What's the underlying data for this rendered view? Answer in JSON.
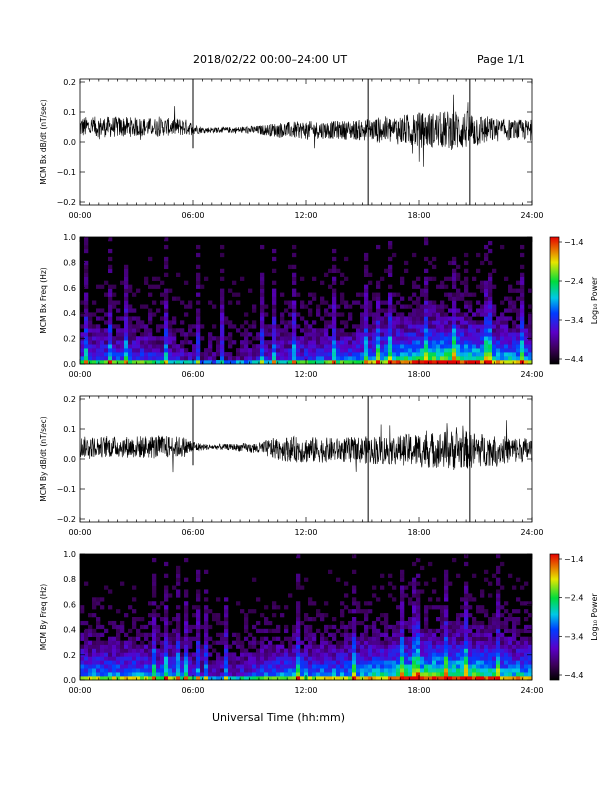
{
  "header": {
    "title": "2018/02/22  00:00–24:00 UT",
    "page": "Page 1/1"
  },
  "footer": {
    "xlabel": "Universal Time (hh:mm)"
  },
  "chart_data": [
    {
      "type": "line",
      "ylabel": "MCM Bx dB/dt (nT/sec)",
      "xlim": [
        0,
        24
      ],
      "ylim": [
        -0.21,
        0.21
      ],
      "x_ticks": [
        "00:00",
        "06:00",
        "12:00",
        "18:00",
        "24:00"
      ],
      "y_ticks": [
        "−0.2",
        "−0.1",
        "0.0",
        "0.1",
        "0.2"
      ],
      "y_tick_values": [
        -0.2,
        -0.1,
        0.0,
        0.1,
        0.2
      ],
      "spikes_hours": [
        6.0,
        15.3,
        20.7
      ],
      "envelope": {
        "hours": [
          0,
          2,
          4,
          5.5,
          6.5,
          8,
          9.5,
          10.5,
          12,
          13.5,
          15,
          16,
          17,
          18,
          19,
          20,
          21,
          22,
          23,
          24
        ],
        "amplitude": [
          0.035,
          0.035,
          0.03,
          0.03,
          0.01,
          0.01,
          0.015,
          0.025,
          0.03,
          0.03,
          0.035,
          0.045,
          0.05,
          0.06,
          0.06,
          0.07,
          0.06,
          0.04,
          0.035,
          0.035
        ],
        "baseline": [
          0.05,
          0.05,
          0.05,
          0.05,
          0.04,
          0.04,
          0.04,
          0.04,
          0.04,
          0.04,
          0.04,
          0.04,
          0.04,
          0.04,
          0.04,
          0.04,
          0.04,
          0.04,
          0.04,
          0.04
        ]
      }
    },
    {
      "type": "heatmap",
      "ylabel": "MCM Bx Freq (Hz)",
      "xlim": [
        0,
        24
      ],
      "ylim": [
        0,
        1.0
      ],
      "x_ticks": [
        "00:00",
        "06:00",
        "12:00",
        "18:00",
        "24:00"
      ],
      "y_ticks": [
        "0.0",
        "0.2",
        "0.4",
        "0.6",
        "0.8",
        "1.0"
      ],
      "y_tick_values": [
        0.0,
        0.2,
        0.4,
        0.6,
        0.8,
        1.0
      ],
      "colorbar": {
        "label": "Log₁₀ Power",
        "ticks": [
          "−1.4",
          "−2.4",
          "−3.4",
          "−4.4"
        ],
        "range": [
          -4.4,
          -1.4
        ]
      },
      "activity": {
        "hours": [
          0,
          3,
          5,
          6.5,
          8,
          9.5,
          11,
          13,
          15,
          16,
          17,
          18,
          19,
          20,
          21,
          22,
          23,
          24
        ],
        "level": [
          0.45,
          0.45,
          0.35,
          0.2,
          0.2,
          0.3,
          0.4,
          0.45,
          0.5,
          0.6,
          0.7,
          0.75,
          0.8,
          0.8,
          0.75,
          0.65,
          0.6,
          0.55
        ]
      }
    },
    {
      "type": "line",
      "ylabel": "MCM By dB/dt (nT/sec)",
      "xlim": [
        0,
        24
      ],
      "ylim": [
        -0.21,
        0.21
      ],
      "x_ticks": [
        "00:00",
        "06:00",
        "12:00",
        "18:00",
        "24:00"
      ],
      "y_ticks": [
        "−0.2",
        "−0.1",
        "0.0",
        "0.1",
        "0.2"
      ],
      "y_tick_values": [
        -0.2,
        -0.1,
        0.0,
        0.1,
        0.2
      ],
      "spikes_hours": [
        6.0,
        15.3,
        20.7
      ],
      "envelope": {
        "hours": [
          0,
          2,
          4,
          5.5,
          6.5,
          8,
          9.5,
          10.5,
          12,
          13.5,
          15,
          16,
          17,
          18,
          19,
          20,
          21,
          22,
          23,
          24
        ],
        "amplitude": [
          0.035,
          0.035,
          0.04,
          0.035,
          0.01,
          0.01,
          0.02,
          0.04,
          0.045,
          0.04,
          0.045,
          0.05,
          0.05,
          0.06,
          0.06,
          0.07,
          0.06,
          0.05,
          0.045,
          0.04
        ],
        "baseline": [
          0.04,
          0.04,
          0.04,
          0.04,
          0.04,
          0.04,
          0.035,
          0.035,
          0.03,
          0.03,
          0.03,
          0.03,
          0.03,
          0.03,
          0.03,
          0.03,
          0.03,
          0.03,
          0.03,
          0.03
        ]
      }
    },
    {
      "type": "heatmap",
      "ylabel": "MCM By Freq (Hz)",
      "xlim": [
        0,
        24
      ],
      "ylim": [
        0,
        1.0
      ],
      "x_ticks": [
        "00:00",
        "06:00",
        "12:00",
        "18:00",
        "24:00"
      ],
      "y_ticks": [
        "0.0",
        "0.2",
        "0.4",
        "0.6",
        "0.8",
        "1.0"
      ],
      "y_tick_values": [
        0.0,
        0.2,
        0.4,
        0.6,
        0.8,
        1.0
      ],
      "colorbar": {
        "label": "Log₁₀ Power",
        "ticks": [
          "−1.4",
          "−2.4",
          "−3.4",
          "−4.4"
        ],
        "range": [
          -4.4,
          -1.4
        ]
      },
      "activity": {
        "hours": [
          0,
          3,
          5,
          6.5,
          8,
          9.5,
          11,
          13,
          15,
          16,
          17,
          18,
          19,
          20,
          21,
          22,
          23,
          24
        ],
        "level": [
          0.55,
          0.55,
          0.5,
          0.3,
          0.3,
          0.45,
          0.55,
          0.55,
          0.6,
          0.65,
          0.75,
          0.8,
          0.8,
          0.8,
          0.8,
          0.7,
          0.65,
          0.6
        ]
      }
    }
  ]
}
